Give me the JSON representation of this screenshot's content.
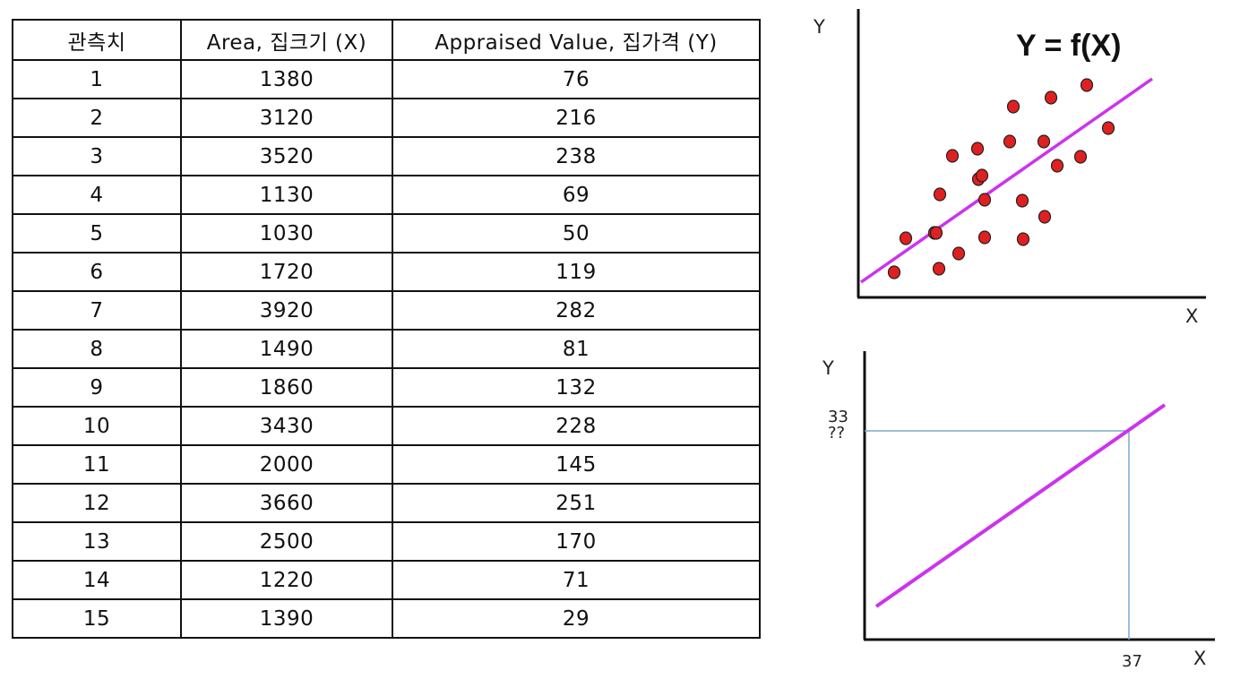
{
  "table": {
    "headers": [
      "관측치",
      "Area, 집크기 (X)",
      "Appraised Value, 집가격 (Y)"
    ],
    "rows": [
      [
        "1",
        "1380",
        "76"
      ],
      [
        "2",
        "3120",
        "216"
      ],
      [
        "3",
        "3520",
        "238"
      ],
      [
        "4",
        "1130",
        "69"
      ],
      [
        "5",
        "1030",
        "50"
      ],
      [
        "6",
        "1720",
        "119"
      ],
      [
        "7",
        "3920",
        "282"
      ],
      [
        "8",
        "1490",
        "81"
      ],
      [
        "9",
        "1860",
        "132"
      ],
      [
        "10",
        "3430",
        "228"
      ],
      [
        "11",
        "2000",
        "145"
      ],
      [
        "12",
        "3660",
        "251"
      ],
      [
        "13",
        "2500",
        "170"
      ],
      [
        "14",
        "1220",
        "71"
      ],
      [
        "15",
        "1390",
        "29"
      ]
    ]
  },
  "scatter_plot": {
    "y_axis_label": "Y",
    "x_axis_label": "X",
    "formula": "Y = f(X)",
    "point_color": "#e02020",
    "line_color": "#cc33ee",
    "point_count": 24
  },
  "prediction_plot": {
    "y_axis_label": "Y",
    "x_axis_label": "X",
    "x_value_label": "37",
    "y_value_label": "33",
    "y_unknown_label": "??",
    "y_value_color": "#d42020",
    "guide_color": "#7fa6d0",
    "line_color": "#cc33ee"
  }
}
